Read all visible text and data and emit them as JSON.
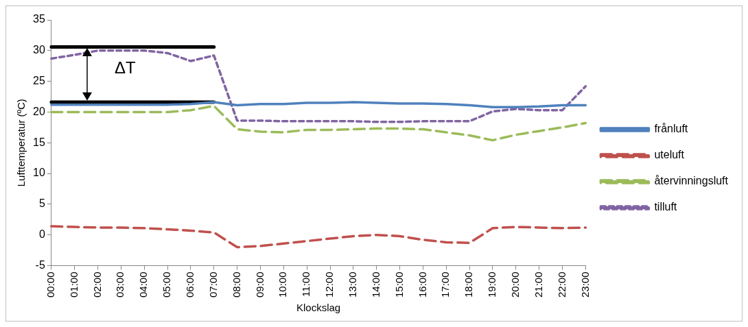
{
  "chart_data": {
    "type": "line",
    "xlabel": "Klockslag",
    "ylabel": "Lufttemperatur (ºC)",
    "categories": [
      "00:00",
      "01:00",
      "02:00",
      "03:00",
      "04:00",
      "05:00",
      "06:00",
      "07:00",
      "08:00",
      "09:00",
      "10:00",
      "11:00",
      "12:00",
      "13:00",
      "14:00",
      "15:00",
      "16:00",
      "17:00",
      "18:00",
      "19:00",
      "20:00",
      "21:00",
      "22:00",
      "23:00"
    ],
    "series": [
      {
        "name": "frånluft",
        "color": "#4f81bd",
        "line_style": "solid",
        "values": [
          21.2,
          21.2,
          21.2,
          21.2,
          21.2,
          21.2,
          21.3,
          21.6,
          21.1,
          21.3,
          21.3,
          21.5,
          21.5,
          21.6,
          21.5,
          21.4,
          21.4,
          21.3,
          21.1,
          20.8,
          20.8,
          20.9,
          21.1,
          21.1
        ]
      },
      {
        "name": "uteluft",
        "color": "#c0504d",
        "line_style": "dashed",
        "values": [
          1.4,
          1.3,
          1.2,
          1.2,
          1.1,
          0.9,
          0.7,
          0.4,
          -2.0,
          -1.8,
          -1.4,
          -1.0,
          -0.6,
          -0.2,
          0.0,
          -0.2,
          -0.8,
          -1.2,
          -1.3,
          1.1,
          1.3,
          1.2,
          1.1,
          1.2
        ]
      },
      {
        "name": "återvinningsluft",
        "color": "#9bbb59",
        "line_style": "dashed",
        "values": [
          20.0,
          20.0,
          20.0,
          20.0,
          20.0,
          20.0,
          20.3,
          21.0,
          17.2,
          16.8,
          16.7,
          17.1,
          17.1,
          17.2,
          17.3,
          17.3,
          17.2,
          16.7,
          16.2,
          15.4,
          16.3,
          16.9,
          17.5,
          18.2
        ]
      },
      {
        "name": "tilluft",
        "color": "#8064a2",
        "line_style": "dotted",
        "values": [
          28.7,
          29.3,
          30.0,
          30.0,
          30.0,
          29.6,
          28.3,
          29.2,
          18.6,
          18.6,
          18.5,
          18.5,
          18.5,
          18.5,
          18.4,
          18.4,
          18.5,
          18.5,
          18.5,
          20.1,
          20.5,
          20.3,
          20.3,
          24.2
        ]
      },
      {
        "color": "#000000",
        "line_style": "solid",
        "values": [
          30.6,
          30.6,
          30.6,
          30.6,
          30.6,
          30.6,
          30.6,
          30.6,
          null,
          null,
          null,
          null,
          null,
          null,
          null,
          null,
          null,
          null,
          null,
          null,
          null,
          null,
          null,
          null
        ]
      },
      {
        "color": "#000000",
        "line_style": "solid",
        "values": [
          21.6,
          21.6,
          21.6,
          21.6,
          21.6,
          21.6,
          21.6,
          21.6,
          null,
          null,
          null,
          null,
          null,
          null,
          null,
          null,
          null,
          null,
          null,
          null,
          null,
          null,
          null,
          null
        ]
      }
    ],
    "annotations": [
      "ΔT"
    ],
    "ylim": [
      -5,
      35
    ],
    "yticks": [
      -5,
      0,
      5,
      10,
      15,
      20,
      25,
      30,
      35
    ],
    "grid": false,
    "legend": "right",
    "marker": "none"
  }
}
